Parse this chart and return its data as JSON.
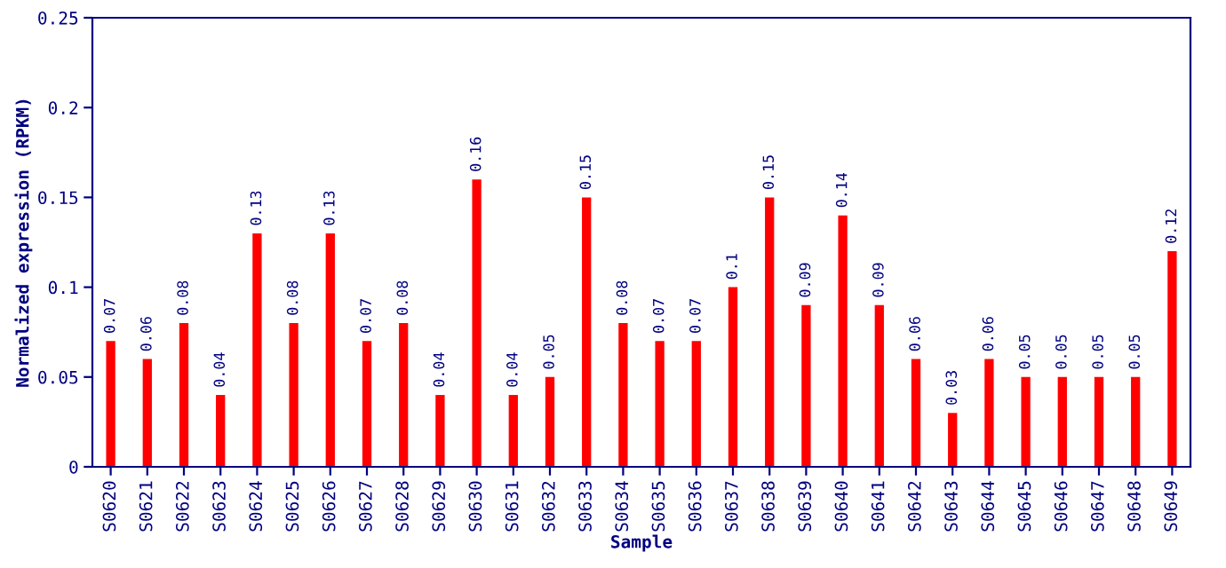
{
  "chart_data": {
    "type": "bar",
    "xlabel": "Sample",
    "ylabel": "Normalized expression (RPKM)",
    "categories": [
      "S0620",
      "S0621",
      "S0622",
      "S0623",
      "S0624",
      "S0625",
      "S0626",
      "S0627",
      "S0628",
      "S0629",
      "S0630",
      "S0631",
      "S0632",
      "S0633",
      "S0634",
      "S0635",
      "S0636",
      "S0637",
      "S0638",
      "S0639",
      "S0640",
      "S0641",
      "S0642",
      "S0643",
      "S0644",
      "S0645",
      "S0646",
      "S0647",
      "S0648",
      "S0649"
    ],
    "values": [
      0.07,
      0.06,
      0.08,
      0.04,
      0.13,
      0.08,
      0.13,
      0.07,
      0.08,
      0.04,
      0.16,
      0.04,
      0.05,
      0.15,
      0.08,
      0.07,
      0.07,
      0.1,
      0.15,
      0.09,
      0.14,
      0.09,
      0.06,
      0.03,
      0.06,
      0.05,
      0.05,
      0.05,
      0.05,
      0.12
    ],
    "color": "#ff0000",
    "ylim": [
      0,
      0.25
    ],
    "yticks": [
      0,
      0.05,
      0.1,
      0.15,
      0.2,
      0.25
    ],
    "grid": false,
    "data_labels": true
  }
}
